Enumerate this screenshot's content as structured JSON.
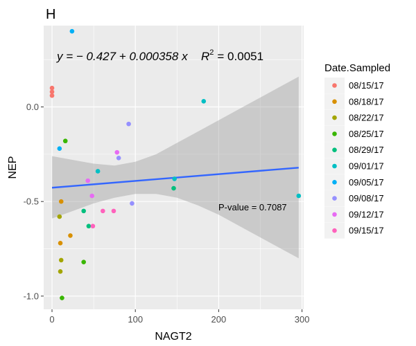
{
  "chart_data": {
    "type": "scatter",
    "panel_label": "H",
    "xlabel": "NAGT2",
    "ylabel": "NEP",
    "xlim": [
      -10,
      302
    ],
    "ylim": [
      -1.07,
      0.43
    ],
    "x_ticks": [
      0,
      100,
      200,
      300
    ],
    "y_ticks": [
      -1.0,
      -0.5,
      0.0
    ],
    "y_tick_labels": [
      "-1.0",
      "-0.5",
      "0.0"
    ],
    "grid": true,
    "legend_position": "right",
    "legend_title": "Date.Sampled",
    "equation_text": "y = − 0.427 + 0.000358 x",
    "r2_label": "R",
    "r2_sup": "2",
    "r2_value": "= 0.0051",
    "pvalue_text": "P-value = 0.7087",
    "fit_line": {
      "intercept": -0.427,
      "slope": 0.000358,
      "x_range": [
        0,
        296
      ]
    },
    "confidence_band": {
      "x": [
        0,
        25,
        50,
        75,
        100,
        125,
        150,
        175,
        200,
        225,
        250,
        275,
        296
      ],
      "lower": [
        -0.59,
        -0.55,
        -0.51,
        -0.48,
        -0.46,
        -0.46,
        -0.48,
        -0.52,
        -0.57,
        -0.63,
        -0.69,
        -0.75,
        -0.8
      ],
      "upper": [
        -0.26,
        -0.28,
        -0.3,
        -0.31,
        -0.29,
        -0.25,
        -0.19,
        -0.13,
        -0.07,
        -0.01,
        0.05,
        0.11,
        0.16
      ]
    },
    "series": [
      {
        "name": "08/15/17",
        "color": "#F8766D",
        "points": [
          [
            0,
            0.1
          ],
          [
            0,
            0.08
          ],
          [
            0,
            0.06
          ]
        ]
      },
      {
        "name": "08/18/17",
        "color": "#D89000",
        "points": [
          [
            11,
            -0.5
          ],
          [
            22,
            -0.68
          ],
          [
            10,
            -0.72
          ]
        ]
      },
      {
        "name": "08/22/17",
        "color": "#A3A500",
        "points": [
          [
            9,
            -0.58
          ],
          [
            11,
            -0.81
          ],
          [
            10,
            -0.87
          ]
        ]
      },
      {
        "name": "08/25/17",
        "color": "#39B600",
        "points": [
          [
            16,
            -0.18
          ],
          [
            38,
            -0.82
          ],
          [
            12,
            -1.01
          ]
        ]
      },
      {
        "name": "08/29/17",
        "color": "#00BF7D",
        "points": [
          [
            38,
            -0.55
          ],
          [
            44,
            -0.63
          ],
          [
            146,
            -0.43
          ]
        ]
      },
      {
        "name": "09/01/17",
        "color": "#00BFC4",
        "points": [
          [
            182,
            0.03
          ],
          [
            55,
            -0.34
          ],
          [
            147,
            -0.38
          ],
          [
            296,
            -0.47
          ]
        ]
      },
      {
        "name": "09/05/17",
        "color": "#00B0F6",
        "points": [
          [
            24,
            0.4
          ],
          [
            9,
            -0.22
          ]
        ]
      },
      {
        "name": "09/08/17",
        "color": "#9590FF",
        "points": [
          [
            92,
            -0.09
          ],
          [
            80,
            -0.27
          ],
          [
            96,
            -0.51
          ]
        ]
      },
      {
        "name": "09/12/17",
        "color": "#E76BF3",
        "points": [
          [
            78,
            -0.24
          ],
          [
            43,
            -0.39
          ],
          [
            48,
            -0.47
          ]
        ]
      },
      {
        "name": "09/15/17",
        "color": "#FF62BC",
        "points": [
          [
            49,
            -0.63
          ],
          [
            61,
            -0.55
          ],
          [
            74,
            -0.55
          ]
        ]
      }
    ]
  }
}
